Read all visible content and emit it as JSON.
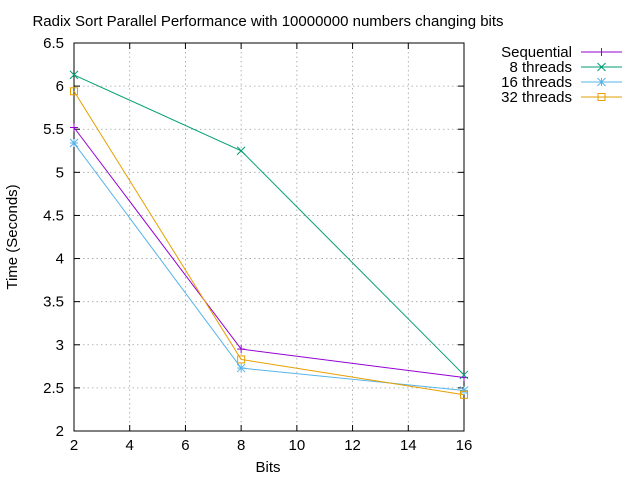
{
  "chart_data": {
    "type": "line",
    "title": "Radix Sort Parallel Performance with 10000000 numbers changing bits",
    "xlabel": "Bits",
    "ylabel": "Time (Seconds)",
    "xlim": [
      2,
      16
    ],
    "ylim": [
      2,
      6.5
    ],
    "xticks": [
      2,
      4,
      6,
      8,
      10,
      12,
      14,
      16
    ],
    "xtick_labels": [
      "2",
      "4",
      "6",
      "8",
      "10",
      "12",
      "14",
      "16"
    ],
    "yticks": [
      2,
      2.5,
      3,
      3.5,
      4,
      4.5,
      5,
      5.5,
      6,
      6.5
    ],
    "ytick_labels": [
      "2",
      "2.5",
      "3",
      "3.5",
      "4",
      "4.5",
      "5",
      "5.5",
      "6",
      "6.5"
    ],
    "grid": true,
    "legend_position": "outside-top-right",
    "x": [
      2,
      8,
      16
    ],
    "series": [
      {
        "name": "Sequential",
        "values": [
          5.52,
          2.95,
          2.62
        ],
        "color": "#9400d3",
        "marker": "plus"
      },
      {
        "name": "8 threads",
        "values": [
          6.13,
          5.25,
          2.65
        ],
        "color": "#009e73",
        "marker": "cross"
      },
      {
        "name": "16 threads",
        "values": [
          5.34,
          2.73,
          2.47
        ],
        "color": "#56b4e9",
        "marker": "star"
      },
      {
        "name": "32 threads",
        "values": [
          5.94,
          2.83,
          2.42
        ],
        "color": "#e69f00",
        "marker": "square"
      }
    ]
  }
}
